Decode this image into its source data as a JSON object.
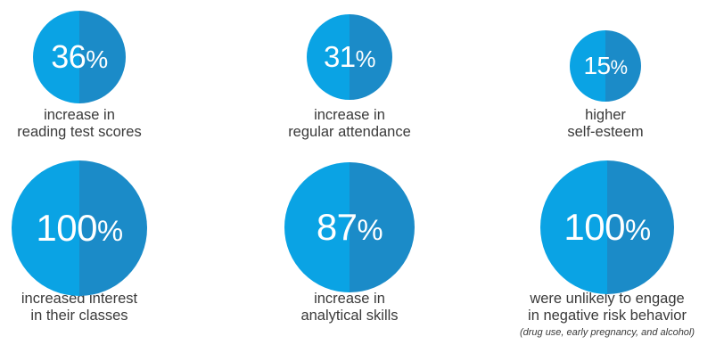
{
  "colors": {
    "left_half": "#0aa3e4",
    "right_half": "#1b8bc8",
    "text": "#3a3a3a"
  },
  "stats": [
    {
      "value": "36",
      "unit": "%",
      "line1": "increase in",
      "line2": "reading test scores",
      "note": ""
    },
    {
      "value": "31",
      "unit": "%",
      "line1": "increase in",
      "line2": "regular attendance",
      "note": ""
    },
    {
      "value": "15",
      "unit": "%",
      "line1": "higher",
      "line2": "self-esteem",
      "note": ""
    },
    {
      "value": "100",
      "unit": "%",
      "line1": "increased interest",
      "line2": "in their classes",
      "note": ""
    },
    {
      "value": "87",
      "unit": "%",
      "line1": "increase in",
      "line2": "analytical skills",
      "note": ""
    },
    {
      "value": "100",
      "unit": "%",
      "line1": "were unlikely to engage",
      "line2": "in negative risk behavior",
      "note": "(drug use, early pregnancy, and alcohol)"
    }
  ]
}
